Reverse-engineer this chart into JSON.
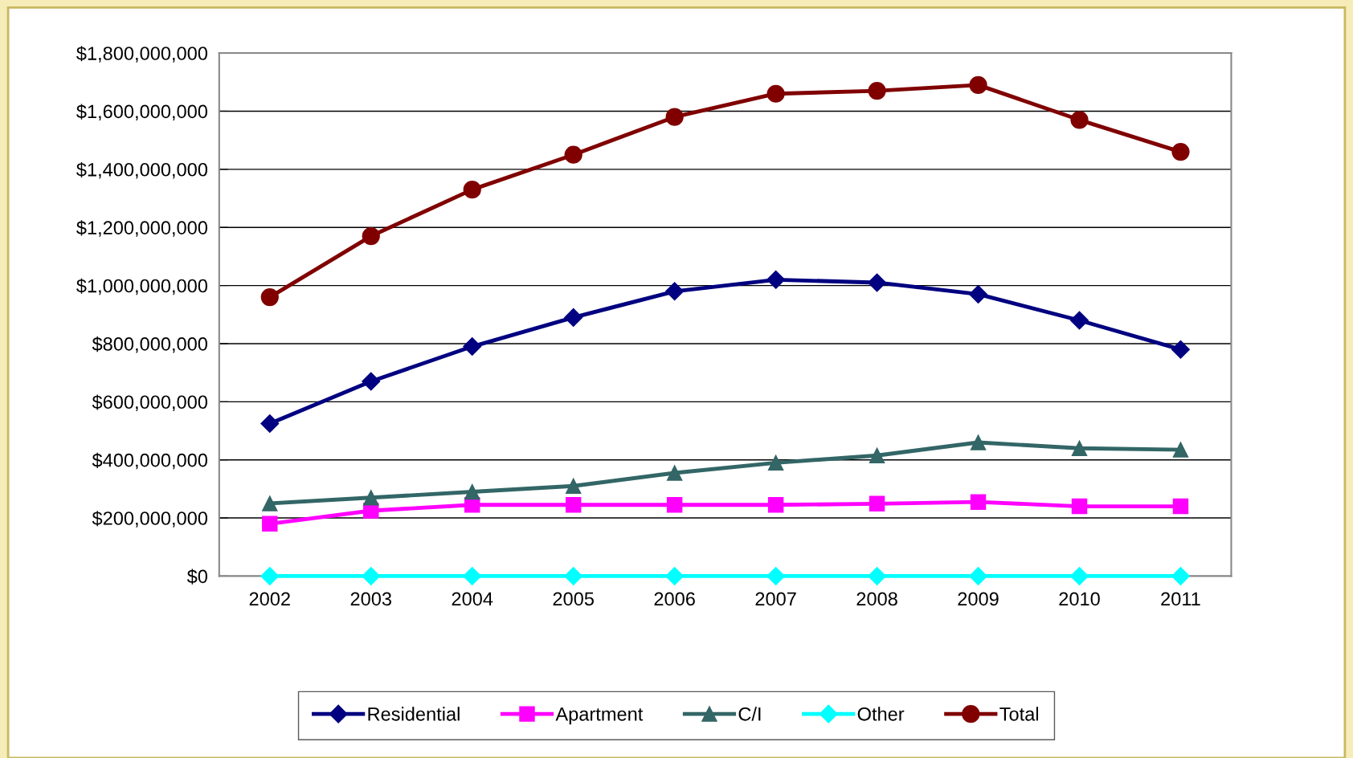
{
  "chart_data": {
    "type": "line",
    "categories": [
      "2002",
      "2003",
      "2004",
      "2005",
      "2006",
      "2007",
      "2008",
      "2009",
      "2010",
      "2011"
    ],
    "series": [
      {
        "name": "Residential",
        "color": "#000080",
        "marker": "diamond",
        "values": [
          525000000,
          670000000,
          790000000,
          890000000,
          980000000,
          1020000000,
          1010000000,
          970000000,
          880000000,
          780000000
        ]
      },
      {
        "name": "Apartment",
        "color": "#ff00ff",
        "marker": "square",
        "values": [
          180000000,
          225000000,
          245000000,
          245000000,
          245000000,
          245000000,
          249000000,
          255000000,
          240000000,
          240000000
        ]
      },
      {
        "name": "C/I",
        "color": "#336666",
        "marker": "triangle",
        "values": [
          250000000,
          270000000,
          290000000,
          310000000,
          355000000,
          390000000,
          415000000,
          460000000,
          440000000,
          435000000
        ]
      },
      {
        "name": "Other",
        "color": "#00ffff",
        "marker": "diamond",
        "values": [
          0,
          0,
          0,
          0,
          0,
          0,
          0,
          0,
          0,
          0
        ]
      },
      {
        "name": "Total",
        "color": "#800000",
        "marker": "circle",
        "values": [
          960000000,
          1170000000,
          1330000000,
          1450000000,
          1580000000,
          1660000000,
          1670000000,
          1690000000,
          1570000000,
          1460000000
        ]
      }
    ],
    "ylim": [
      0,
      1800000000
    ],
    "yticks": [
      {
        "value": 0,
        "label": "$0"
      },
      {
        "value": 200000000,
        "label": "$200,000,000"
      },
      {
        "value": 400000000,
        "label": "$400,000,000"
      },
      {
        "value": 600000000,
        "label": "$600,000,000"
      },
      {
        "value": 800000000,
        "label": "$800,000,000"
      },
      {
        "value": 1000000000,
        "label": "$1,000,000,000"
      },
      {
        "value": 1200000000,
        "label": "$1,200,000,000"
      },
      {
        "value": 1400000000,
        "label": "$1,400,000,000"
      },
      {
        "value": 1600000000,
        "label": "$1,600,000,000"
      },
      {
        "value": 1800000000,
        "label": "$1,800,000,000"
      }
    ],
    "grid": "y",
    "legend": "bottom",
    "line_style": "solid"
  }
}
